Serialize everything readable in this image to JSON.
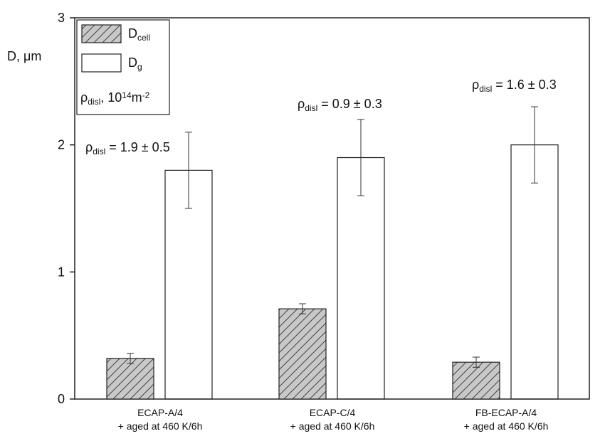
{
  "chart_data": {
    "type": "bar",
    "y_label": "D, μm",
    "categories": [
      "ECAP-A/4\n+ aged at 460 K/6h",
      "ECAP-C/4\n+ aged at 460 K/6h",
      "FB-ECAP-A/4\n+ aged at 460 K/6h"
    ],
    "series": [
      {
        "name": "D",
        "subscript": "cell",
        "color": "#c8c8c8",
        "hatch": "/",
        "values": [
          0.32,
          0.71,
          0.29
        ],
        "errors": [
          0.04,
          0.04,
          0.04
        ]
      },
      {
        "name": "D",
        "subscript": "g",
        "color": "#c8c8c8",
        "hatch": "\\",
        "values": [
          1.8,
          1.9,
          2.0
        ],
        "errors": [
          0.3,
          0.3,
          0.3
        ]
      }
    ],
    "legend_note": {
      "symbol": "ρ",
      "subscript": "disl",
      "text": ", 10",
      "superscript": "14",
      "unit": "m",
      "unit_superscript": "-2"
    },
    "annotations": [
      {
        "symbol": "ρ",
        "subscript": "disl",
        "text": " = 1.9 ± 0.5"
      },
      {
        "symbol": "ρ",
        "subscript": "disl",
        "text": " = 0.9 ± 0.3"
      },
      {
        "symbol": "ρ",
        "subscript": "disl",
        "text": " = 1.6 ± 0.3"
      }
    ],
    "ylim": [
      0,
      3
    ],
    "yticks": [
      0,
      1,
      2,
      3
    ],
    "legend": "upper left"
  }
}
